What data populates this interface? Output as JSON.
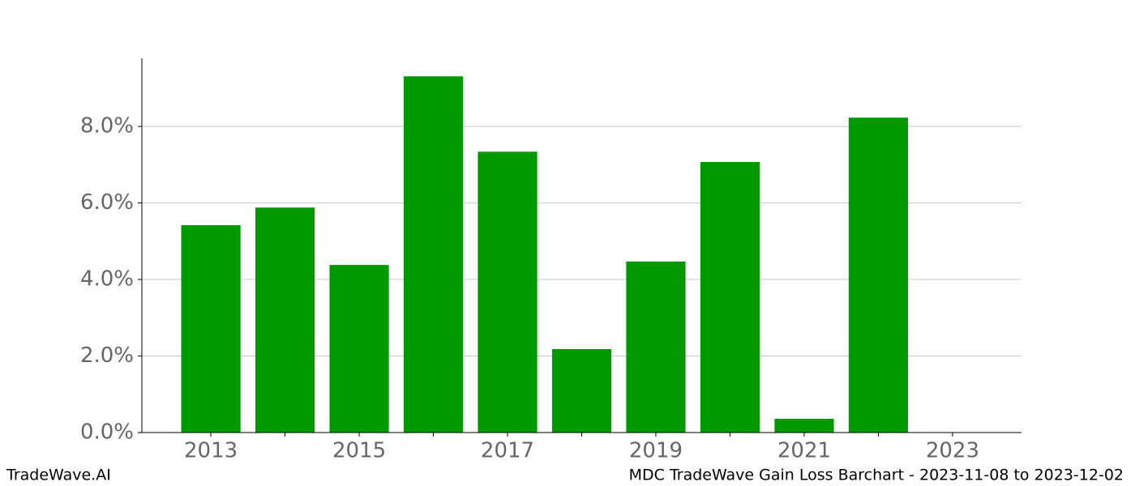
{
  "chart_data": {
    "type": "bar",
    "x": [
      2013,
      2014,
      2015,
      2016,
      2017,
      2018,
      2019,
      2020,
      2021,
      2022
    ],
    "values": [
      5.42,
      5.88,
      4.38,
      9.31,
      7.34,
      2.18,
      4.47,
      7.07,
      0.36,
      8.23
    ],
    "color": "#009900",
    "xlim": [
      2012.07,
      2023.93
    ],
    "xticks": [
      2013,
      2015,
      2017,
      2019,
      2021,
      2023
    ],
    "xminor_ticks": [
      2014,
      2016,
      2018,
      2020,
      2022
    ],
    "ylim": [
      0,
      9.78
    ],
    "yticks": [
      {
        "value": 0,
        "label": "0.0%"
      },
      {
        "value": 2,
        "label": "2.0%"
      },
      {
        "value": 4,
        "label": "4.0%"
      },
      {
        "value": 6,
        "label": "6.0%"
      },
      {
        "value": 8,
        "label": "8.0%"
      }
    ],
    "grid": true,
    "watermark": "TradeWave.AI",
    "caption": "MDC TradeWave Gain Loss Barchart - 2023-11-08 to 2023-12-02"
  }
}
